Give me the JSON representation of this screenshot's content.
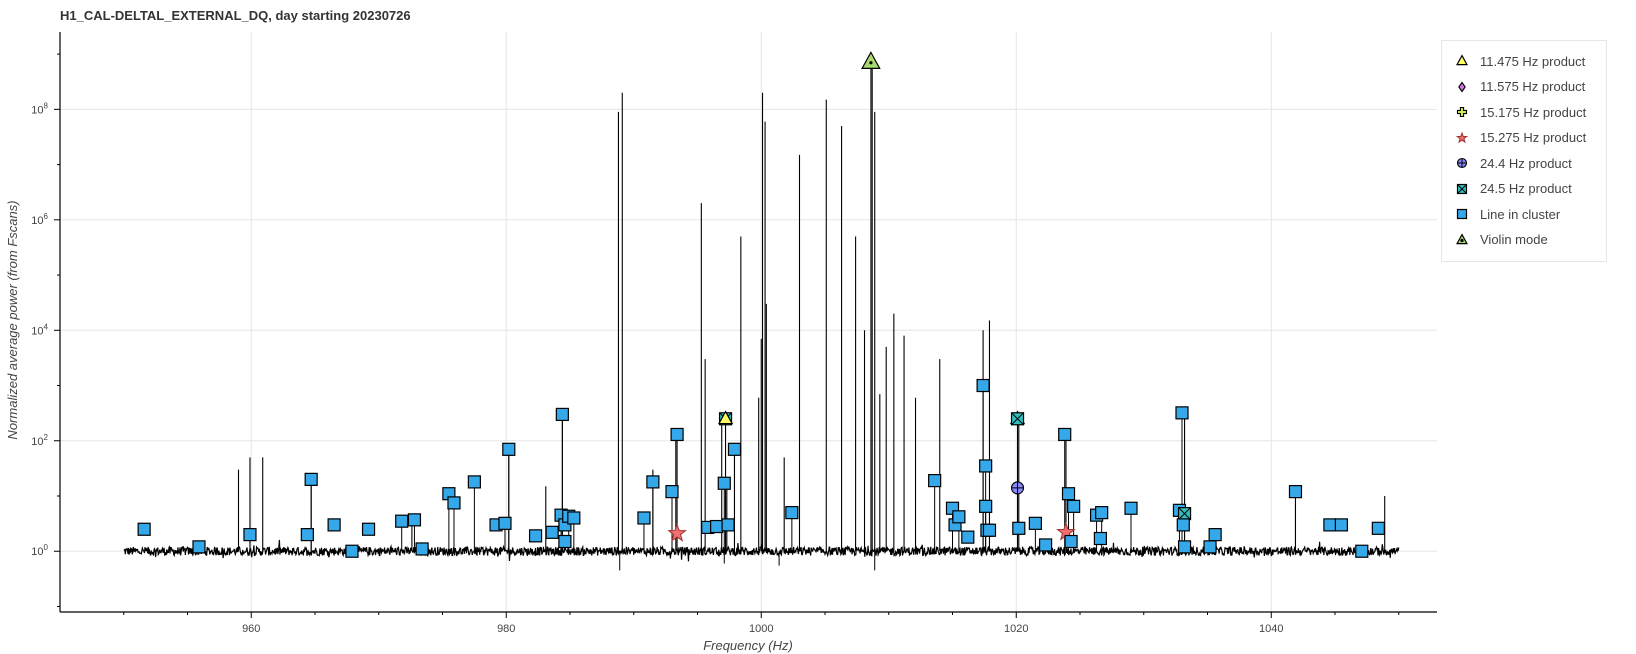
{
  "title": "H1_CAL-DELTAL_EXTERNAL_DQ, day starting 20230726",
  "colors": {
    "line": "#000000",
    "grid": "#e6e6e6",
    "cluster": "#34a8e8",
    "violin": "#a8d870",
    "harm_11_475": "#ffff66",
    "harm_11_575": "#e070e0",
    "harm_15_175": "#c8f040",
    "harm_15_275": "#f07070",
    "harm_24_4": "#8888ff",
    "harm_24_5": "#30c0c0"
  },
  "legend": [
    {
      "label": "11.475 Hz product",
      "icon": "triangle",
      "color": "#ffff66"
    },
    {
      "label": "11.575 Hz product",
      "icon": "diamond",
      "color": "#e070e0"
    },
    {
      "label": "15.175 Hz product",
      "icon": "cross",
      "color": "#c8f040"
    },
    {
      "label": "15.275 Hz product",
      "icon": "star",
      "color": "#f07070"
    },
    {
      "label": "24.4 Hz product",
      "icon": "circle-cross",
      "color": "#8888ff"
    },
    {
      "label": "24.5 Hz product",
      "icon": "square-x",
      "color": "#30c0c0"
    },
    {
      "label": "Line in cluster",
      "icon": "square",
      "color": "#34a8e8"
    },
    {
      "label": "Violin mode",
      "icon": "triangle-dot",
      "color": "#a8d870"
    }
  ],
  "chart_data": {
    "type": "line",
    "title": "H1_CAL-DELTAL_EXTERNAL_DQ, day starting 20230726",
    "xlabel": "Frequency (Hz)",
    "ylabel": "Normalized average power (from Fscans)",
    "xlim": [
      945,
      1053
    ],
    "ylim_log10": [
      -1.1,
      9.4
    ],
    "yscale": "log",
    "grid": true,
    "legend_position": "right-outside",
    "x_ticks": [
      960,
      980,
      1000,
      1020,
      1040
    ],
    "y_ticks": [
      {
        "exp": 0,
        "base": "10",
        "sup": "0"
      },
      {
        "exp": 2,
        "base": "10",
        "sup": "2"
      },
      {
        "exp": 4,
        "base": "10",
        "sup": "4"
      },
      {
        "exp": 6,
        "base": "10",
        "sup": "6"
      },
      {
        "exp": 8,
        "base": "10",
        "sup": "8"
      }
    ],
    "noise_floor": {
      "x_start": 950,
      "x_end": 1050,
      "value": 1.0
    },
    "peaks": [
      [
        959.0,
        30
      ],
      [
        959.9,
        50
      ],
      [
        960.9,
        50
      ],
      [
        964.7,
        20
      ],
      [
        972.6,
        4
      ],
      [
        980.2,
        70
      ],
      [
        983.1,
        15
      ],
      [
        984.4,
        300
      ],
      [
        988.8,
        90000000
      ],
      [
        989.1,
        200000000
      ],
      [
        991.5,
        30
      ],
      [
        993.3,
        120
      ],
      [
        995.3,
        2000000
      ],
      [
        995.6,
        3000
      ],
      [
        996.9,
        250
      ],
      [
        997.3,
        20
      ],
      [
        997.9,
        70
      ],
      [
        998.4,
        500000
      ],
      [
        999.8,
        600
      ],
      [
        1000.0,
        7000
      ],
      [
        1000.1,
        200000000
      ],
      [
        1000.3,
        60000000
      ],
      [
        1000.4,
        30000
      ],
      [
        1001.8,
        50
      ],
      [
        1003.0,
        15000000
      ],
      [
        1005.1,
        150000000
      ],
      [
        1006.3,
        50000000
      ],
      [
        1007.4,
        500000
      ],
      [
        1008.1,
        10000
      ],
      [
        1008.7,
        700000000
      ],
      [
        1008.9,
        90000000
      ],
      [
        1009.3,
        700
      ],
      [
        1009.8,
        5000
      ],
      [
        1010.4,
        20000
      ],
      [
        1011.2,
        8000
      ],
      [
        1012.1,
        600
      ],
      [
        1014.0,
        3000
      ],
      [
        1017.4,
        10000
      ],
      [
        1017.9,
        15000
      ],
      [
        1020.2,
        250
      ],
      [
        1023.9,
        120
      ],
      [
        1033.2,
        300
      ],
      [
        1041.9,
        12
      ],
      [
        1048.9,
        10
      ]
    ],
    "markers": [
      {
        "x": 951.6,
        "y": 2.5,
        "kind": "cluster"
      },
      {
        "x": 955.9,
        "y": 1.2,
        "kind": "cluster"
      },
      {
        "x": 959.9,
        "y": 2.0,
        "kind": "cluster"
      },
      {
        "x": 964.4,
        "y": 2.0,
        "kind": "cluster"
      },
      {
        "x": 964.7,
        "y": 20,
        "kind": "cluster"
      },
      {
        "x": 966.5,
        "y": 3.0,
        "kind": "cluster"
      },
      {
        "x": 967.9,
        "y": 1.0,
        "kind": "cluster"
      },
      {
        "x": 969.2,
        "y": 2.5,
        "kind": "cluster"
      },
      {
        "x": 971.8,
        "y": 3.5,
        "kind": "cluster"
      },
      {
        "x": 972.8,
        "y": 3.7,
        "kind": "cluster"
      },
      {
        "x": 973.4,
        "y": 1.1,
        "kind": "cluster"
      },
      {
        "x": 975.5,
        "y": 11,
        "kind": "cluster"
      },
      {
        "x": 975.9,
        "y": 7.5,
        "kind": "cluster"
      },
      {
        "x": 977.5,
        "y": 18,
        "kind": "cluster"
      },
      {
        "x": 979.2,
        "y": 3.0,
        "kind": "cluster"
      },
      {
        "x": 979.9,
        "y": 3.2,
        "kind": "cluster"
      },
      {
        "x": 980.2,
        "y": 70,
        "kind": "cluster"
      },
      {
        "x": 982.3,
        "y": 1.9,
        "kind": "cluster"
      },
      {
        "x": 983.6,
        "y": 2.2,
        "kind": "cluster"
      },
      {
        "x": 984.3,
        "y": 4.5,
        "kind": "cluster"
      },
      {
        "x": 984.4,
        "y": 300,
        "kind": "cluster"
      },
      {
        "x": 984.6,
        "y": 3.0,
        "kind": "cluster"
      },
      {
        "x": 984.6,
        "y": 1.5,
        "kind": "cluster"
      },
      {
        "x": 984.9,
        "y": 4.3,
        "kind": "cluster"
      },
      {
        "x": 985.3,
        "y": 4.0,
        "kind": "cluster"
      },
      {
        "x": 990.8,
        "y": 4.0,
        "kind": "cluster"
      },
      {
        "x": 991.5,
        "y": 18,
        "kind": "cluster"
      },
      {
        "x": 993.0,
        "y": 12,
        "kind": "cluster"
      },
      {
        "x": 993.4,
        "y": 130,
        "kind": "cluster"
      },
      {
        "x": 993.4,
        "y": 2.1,
        "kind": "star"
      },
      {
        "x": 995.8,
        "y": 2.7,
        "kind": "cluster"
      },
      {
        "x": 996.5,
        "y": 2.8,
        "kind": "cluster"
      },
      {
        "x": 997.1,
        "y": 17,
        "kind": "cluster"
      },
      {
        "x": 997.2,
        "y": 250,
        "kind": "square-x"
      },
      {
        "x": 997.2,
        "y": 250,
        "kind": "triangle"
      },
      {
        "x": 997.4,
        "y": 3.0,
        "kind": "cluster"
      },
      {
        "x": 997.9,
        "y": 70,
        "kind": "cluster"
      },
      {
        "x": 1002.4,
        "y": 5.0,
        "kind": "cluster"
      },
      {
        "x": 1008.6,
        "y": 720000000,
        "kind": "violin"
      },
      {
        "x": 1013.6,
        "y": 19,
        "kind": "cluster"
      },
      {
        "x": 1015.0,
        "y": 6.0,
        "kind": "cluster"
      },
      {
        "x": 1015.2,
        "y": 3.0,
        "kind": "cluster"
      },
      {
        "x": 1015.5,
        "y": 4.2,
        "kind": "cluster"
      },
      {
        "x": 1016.2,
        "y": 1.8,
        "kind": "cluster"
      },
      {
        "x": 1017.4,
        "y": 1000,
        "kind": "cluster"
      },
      {
        "x": 1017.6,
        "y": 35,
        "kind": "cluster"
      },
      {
        "x": 1017.6,
        "y": 6.5,
        "kind": "cluster"
      },
      {
        "x": 1017.7,
        "y": 2.4,
        "kind": "cluster"
      },
      {
        "x": 1017.9,
        "y": 2.4,
        "kind": "cluster"
      },
      {
        "x": 1020.1,
        "y": 14,
        "kind": "circle-cross"
      },
      {
        "x": 1020.1,
        "y": 250,
        "kind": "triangle"
      },
      {
        "x": 1020.1,
        "y": 250,
        "kind": "square-x"
      },
      {
        "x": 1020.2,
        "y": 2.6,
        "kind": "cluster"
      },
      {
        "x": 1021.5,
        "y": 3.2,
        "kind": "cluster"
      },
      {
        "x": 1022.3,
        "y": 1.3,
        "kind": "cluster"
      },
      {
        "x": 1023.8,
        "y": 130,
        "kind": "cluster"
      },
      {
        "x": 1023.9,
        "y": 2.2,
        "kind": "star"
      },
      {
        "x": 1024.1,
        "y": 11,
        "kind": "cluster"
      },
      {
        "x": 1024.3,
        "y": 1.5,
        "kind": "cluster"
      },
      {
        "x": 1024.5,
        "y": 6.5,
        "kind": "cluster"
      },
      {
        "x": 1026.3,
        "y": 4.5,
        "kind": "cluster"
      },
      {
        "x": 1026.6,
        "y": 1.7,
        "kind": "cluster"
      },
      {
        "x": 1026.7,
        "y": 5.0,
        "kind": "cluster"
      },
      {
        "x": 1029.0,
        "y": 6.0,
        "kind": "cluster"
      },
      {
        "x": 1032.8,
        "y": 5.5,
        "kind": "cluster"
      },
      {
        "x": 1033.0,
        "y": 320,
        "kind": "cluster"
      },
      {
        "x": 1033.2,
        "y": 4.8,
        "kind": "square-x"
      },
      {
        "x": 1033.1,
        "y": 3.0,
        "kind": "cluster"
      },
      {
        "x": 1033.2,
        "y": 1.2,
        "kind": "cluster"
      },
      {
        "x": 1035.2,
        "y": 1.2,
        "kind": "cluster"
      },
      {
        "x": 1035.6,
        "y": 2.0,
        "kind": "cluster"
      },
      {
        "x": 1041.9,
        "y": 12,
        "kind": "cluster"
      },
      {
        "x": 1044.6,
        "y": 3.0,
        "kind": "cluster"
      },
      {
        "x": 1045.5,
        "y": 3.0,
        "kind": "cluster"
      },
      {
        "x": 1047.1,
        "y": 1.0,
        "kind": "cluster"
      },
      {
        "x": 1048.4,
        "y": 2.6,
        "kind": "cluster"
      }
    ]
  }
}
